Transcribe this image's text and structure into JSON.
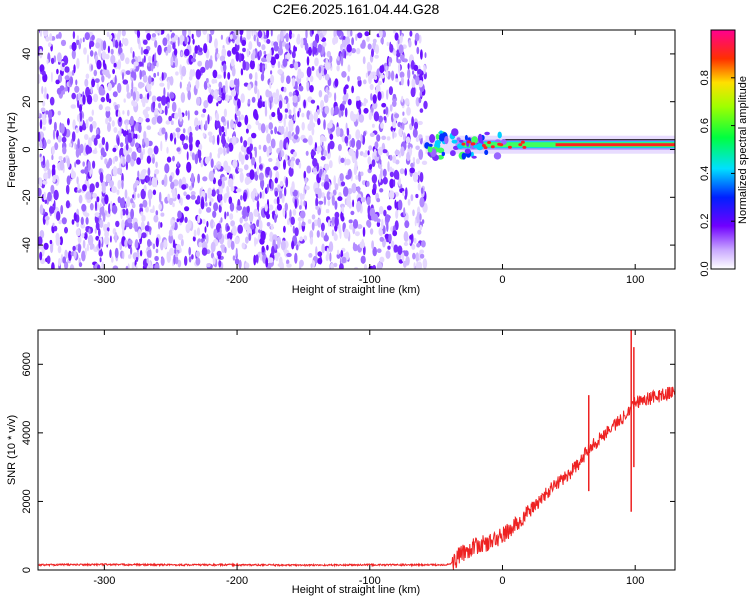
{
  "chart_data": [
    {
      "type": "heatmap",
      "title": "C2E6.2025.161.04.44.G28",
      "xlabel": "Height of straight line (km)",
      "ylabel": "Frequency (Hz)",
      "xlim": [
        -350,
        130
      ],
      "ylim": [
        -50,
        50
      ],
      "x_ticks": [
        -300,
        -200,
        -100,
        0,
        100
      ],
      "y_ticks": [
        -40,
        -20,
        0,
        20,
        40
      ],
      "noise_region_x": [
        -350,
        -58
      ],
      "signal_line_freq": 2,
      "signal_region_x": [
        -58,
        130
      ],
      "colorbar": {
        "label": "Normalized spectral amplitude",
        "range": [
          0,
          1
        ],
        "ticks": [
          "0.0",
          "0.2",
          "0.4",
          "0.6",
          "0.8"
        ],
        "colormap": "rainbow"
      }
    },
    {
      "type": "line",
      "xlabel": "Height of straight line (km)",
      "ylabel": "SNR (10 * v/v)",
      "xlim": [
        -350,
        130
      ],
      "ylim": [
        0,
        7000
      ],
      "x_ticks": [
        -300,
        -200,
        -100,
        0,
        100
      ],
      "y_ticks": [
        0,
        2000,
        4000,
        6000
      ],
      "series": [
        {
          "color": "#ee2222",
          "x": [
            -350,
            -300,
            -250,
            -200,
            -150,
            -100,
            -50,
            -40,
            -35,
            -30,
            -20,
            -10,
            0,
            10,
            20,
            30,
            40,
            50,
            60,
            65,
            70,
            80,
            90,
            95,
            100,
            110,
            120,
            130
          ],
          "y": [
            150,
            160,
            150,
            150,
            140,
            150,
            150,
            160,
            300,
            500,
            700,
            800,
            1000,
            1300,
            1700,
            2100,
            2500,
            2800,
            3200,
            3600,
            3700,
            4100,
            4400,
            4700,
            4900,
            5000,
            5100,
            5200
          ]
        }
      ],
      "annotations": [
        {
          "x": 65,
          "y_min": 2300,
          "y_max": 5100
        },
        {
          "x": 97,
          "y_min": 1700,
          "y_max": 7000
        },
        {
          "x": 99,
          "y_min": 3000,
          "y_max": 6500
        }
      ]
    }
  ]
}
